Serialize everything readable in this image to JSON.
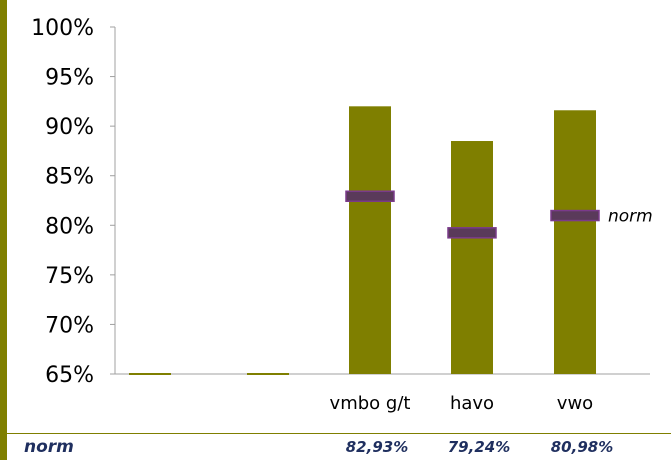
{
  "chart_data": {
    "type": "bar",
    "categories": [
      "",
      "",
      "vmbo g/t",
      "havo",
      "vwo"
    ],
    "values": [
      65,
      65,
      92.0,
      88.5,
      91.6
    ],
    "norm_values": [
      null,
      null,
      82.93,
      79.24,
      80.98
    ],
    "norm_label": "norm",
    "ylim": [
      65,
      100
    ],
    "yticks": [
      "65%",
      "70%",
      "75%",
      "80%",
      "85%",
      "90%",
      "95%",
      "100%"
    ],
    "ytick_values": [
      65,
      70,
      75,
      80,
      85,
      90,
      95,
      100
    ],
    "title": "",
    "xlabel": "",
    "ylabel": "",
    "colors": {
      "bar": "#7f7f00",
      "norm_marker": "#5a3a5a",
      "norm_marker_border": "#7a3a8a",
      "accent": "#7f7f00"
    }
  },
  "norm_row": {
    "label": "norm",
    "values": [
      "82,93%",
      "79,24%",
      "80,98%"
    ]
  }
}
